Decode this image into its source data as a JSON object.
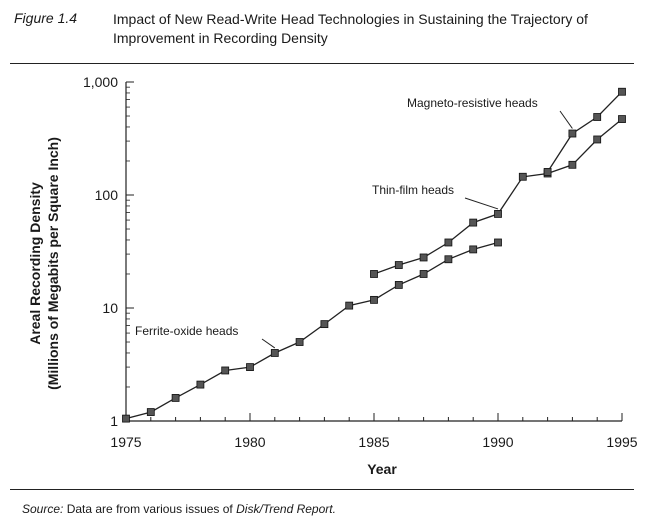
{
  "figure": {
    "label": "Figure 1.4",
    "title": "Impact of New Read-Write Head Technologies in Sustaining the Trajectory of Improvement in Recording Density"
  },
  "source": {
    "label": "Source:",
    "text": "Data are from various issues of",
    "publication": "Disk/Trend Report."
  },
  "chart_data": {
    "type": "line",
    "xlabel": "Year",
    "ylabel": "Areal Recording Density",
    "ylabel_sub": "(Millions of Megabits per Square Inch)",
    "x_ticks": [
      1975,
      1980,
      1985,
      1990,
      1995
    ],
    "y_ticks": [
      {
        "value": 1,
        "label": "1"
      },
      {
        "value": 10,
        "label": "10"
      },
      {
        "value": 100,
        "label": "100"
      },
      {
        "value": 1000,
        "label": "1,000"
      }
    ],
    "xlim": [
      1975,
      1995
    ],
    "ylim": [
      1,
      1000
    ],
    "yscale": "log",
    "grid": false,
    "marker": "square",
    "series": [
      {
        "name": "Ferrite-oxide heads",
        "points": [
          [
            1975,
            1.05
          ],
          [
            1976,
            1.2
          ],
          [
            1977,
            1.6
          ],
          [
            1978,
            2.1
          ],
          [
            1979,
            2.8
          ],
          [
            1980,
            3.0
          ],
          [
            1981,
            4.0
          ],
          [
            1982,
            5.0
          ],
          [
            1983,
            7.2
          ],
          [
            1984,
            10.5
          ],
          [
            1985,
            11.8
          ],
          [
            1986,
            16
          ],
          [
            1987,
            20
          ],
          [
            1988,
            27
          ],
          [
            1989,
            33
          ],
          [
            1990,
            38
          ]
        ]
      },
      {
        "name": "Thin-film heads",
        "points": [
          [
            1985,
            20
          ],
          [
            1986,
            24
          ],
          [
            1987,
            28
          ],
          [
            1988,
            38
          ],
          [
            1989,
            57
          ],
          [
            1990,
            68
          ],
          [
            1991,
            145
          ],
          [
            1992,
            155
          ],
          [
            1993,
            185
          ],
          [
            1994,
            310
          ],
          [
            1995,
            470
          ]
        ]
      },
      {
        "name": "Magneto-resistive heads",
        "points": [
          [
            1992,
            160
          ],
          [
            1993,
            350
          ],
          [
            1994,
            490
          ],
          [
            1995,
            820
          ]
        ]
      }
    ],
    "annotations": [
      {
        "text": "Ferrite-oxide heads",
        "points_to": [
          1981,
          4.0
        ]
      },
      {
        "text": "Thin-film heads",
        "points_to": [
          1990,
          68
        ]
      },
      {
        "text": "Magneto-resistive heads",
        "points_to": [
          1993,
          350
        ]
      }
    ]
  }
}
